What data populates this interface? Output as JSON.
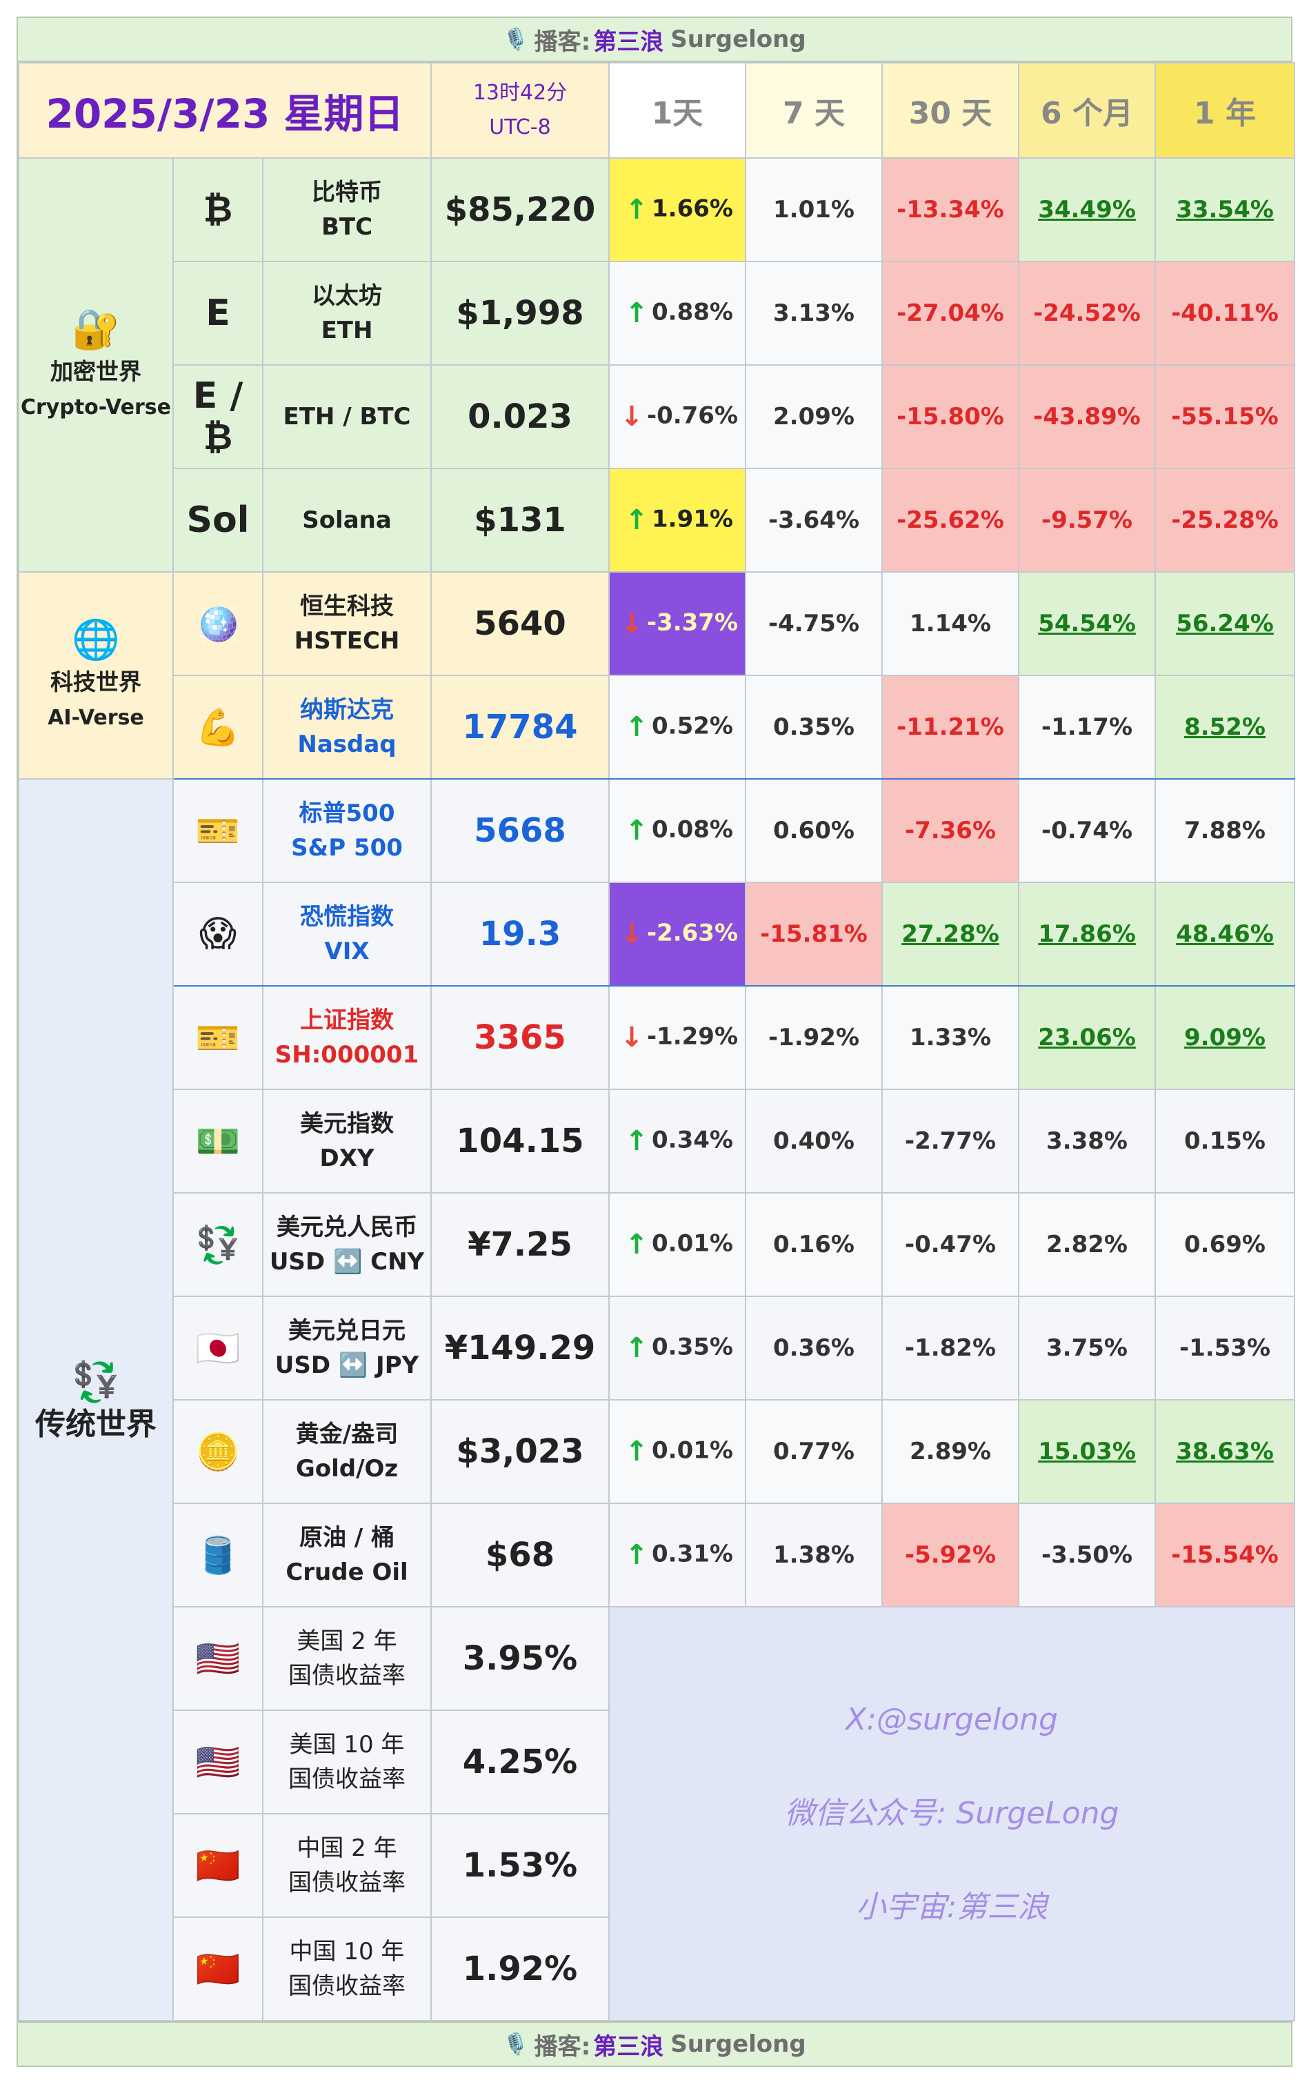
{
  "banner": {
    "mic_icon": "microphone-icon",
    "podcast_label": "播客:",
    "host_cn": "第三浪",
    "host_en": "Surgelong"
  },
  "header": {
    "date": "2025/3/23 星期日",
    "time": "13时42分",
    "timezone": "UTC-8",
    "periods": [
      "1天",
      "7 天",
      "30 天",
      "6 个月",
      "1 年"
    ]
  },
  "categories": {
    "crypto": {
      "icon": "lock-key-icon",
      "emoji": "🔐",
      "cn": "加密世界",
      "en": "Crypto-Verse"
    },
    "tech": {
      "icon": "globe-icon",
      "emoji": "🌐",
      "cn": "科技世界",
      "en": "AI-Verse"
    },
    "trad": {
      "icon": "currency-exchange-icon",
      "emoji": "💱",
      "cn": "传统世界"
    }
  },
  "rows": [
    {
      "icon": "₿",
      "cn": "比特币",
      "en": "BTC",
      "value": "$85,220",
      "arrow": "up",
      "d1": "1.66%",
      "d7": "1.01%",
      "d30": "-13.34%",
      "m6": "34.49%",
      "y1": "33.54%"
    },
    {
      "icon": "E",
      "cn": "以太坊",
      "en": "ETH",
      "value": "$1,998",
      "arrow": "up",
      "d1": "0.88%",
      "d7": "3.13%",
      "d30": "-27.04%",
      "m6": "-24.52%",
      "y1": "-40.11%"
    },
    {
      "icon": "E / ₿",
      "cn": "",
      "en": "ETH / BTC",
      "value": "0.023",
      "arrow": "down",
      "d1": "-0.76%",
      "d7": "2.09%",
      "d30": "-15.80%",
      "m6": "-43.89%",
      "y1": "-55.15%"
    },
    {
      "icon": "Sol",
      "cn": "",
      "en": "Solana",
      "value": "$131",
      "arrow": "up",
      "d1": "1.91%",
      "d7": "-3.64%",
      "d30": "-25.62%",
      "m6": "-9.57%",
      "y1": "-25.28%"
    },
    {
      "icon": "🪩",
      "cn": "恒生科技",
      "en": "HSTECH",
      "value": "5640",
      "arrow": "down",
      "d1": "-3.37%",
      "d7": "-4.75%",
      "d30": "1.14%",
      "m6": "54.54%",
      "y1": "56.24%"
    },
    {
      "icon": "💪",
      "cn": "纳斯达克",
      "en": "Nasdaq",
      "value": "17784",
      "arrow": "up",
      "d1": "0.52%",
      "d7": "0.35%",
      "d30": "-11.21%",
      "m6": "-1.17%",
      "y1": "8.52%"
    },
    {
      "icon": "🎫",
      "cn": "标普500",
      "en": "S&P 500",
      "value": "5668",
      "arrow": "up",
      "d1": "0.08%",
      "d7": "0.60%",
      "d30": "-7.36%",
      "m6": "-0.74%",
      "y1": "7.88%"
    },
    {
      "icon": "😱",
      "cn": "恐慌指数",
      "en": "VIX",
      "value": "19.3",
      "arrow": "down",
      "d1": "-2.63%",
      "d7": "-15.81%",
      "d30": "27.28%",
      "m6": "17.86%",
      "y1": "48.46%"
    },
    {
      "icon": "🎫",
      "cn": "上证指数",
      "en": "SH:000001",
      "value": "3365",
      "arrow": "down",
      "d1": "-1.29%",
      "d7": "-1.92%",
      "d30": "1.33%",
      "m6": "23.06%",
      "y1": "9.09%"
    },
    {
      "icon": "💵",
      "cn": "美元指数",
      "en": "DXY",
      "value": "104.15",
      "arrow": "up",
      "d1": "0.34%",
      "d7": "0.40%",
      "d30": "-2.77%",
      "m6": "3.38%",
      "y1": "0.15%"
    },
    {
      "icon": "💱",
      "cn": "美元兑人民币",
      "en": "USD ↔️ CNY",
      "value": "¥7.25",
      "arrow": "up",
      "d1": "0.01%",
      "d7": "0.16%",
      "d30": "-0.47%",
      "m6": "2.82%",
      "y1": "0.69%"
    },
    {
      "icon": "🇯🇵",
      "cn": "美元兑日元",
      "en": "USD ↔️ JPY",
      "value": "¥149.29",
      "arrow": "up",
      "d1": "0.35%",
      "d7": "0.36%",
      "d30": "-1.82%",
      "m6": "3.75%",
      "y1": "-1.53%"
    },
    {
      "icon": "🪙",
      "cn": "黄金/盎司",
      "en": "Gold/Oz",
      "value": "$3,023",
      "arrow": "up",
      "d1": "0.01%",
      "d7": "0.77%",
      "d30": "2.89%",
      "m6": "15.03%",
      "y1": "38.63%"
    },
    {
      "icon": "🛢️",
      "cn": "原油 / 桶",
      "en": "Crude Oil",
      "value": "$68",
      "arrow": "up",
      "d1": "0.31%",
      "d7": "1.38%",
      "d30": "-5.92%",
      "m6": "-3.50%",
      "y1": "-15.54%"
    }
  ],
  "bonds": [
    {
      "icon": "🇺🇸",
      "line1": "美国 2 年",
      "line2": "国债收益率",
      "value": "3.95%"
    },
    {
      "icon": "🇺🇸",
      "line1": "美国 10 年",
      "line2": "国债收益率",
      "value": "4.25%"
    },
    {
      "icon": "🇨🇳",
      "line1": "中国 2 年",
      "line2": "国债收益率",
      "value": "1.53%"
    },
    {
      "icon": "🇨🇳",
      "line1": "中国 10 年",
      "line2": "国债收益率",
      "value": "1.92%"
    }
  ],
  "watermark": {
    "x": "X:@surgelong",
    "wechat": "微信公众号: SurgeLong",
    "universe": "小宇宙:第三浪"
  },
  "arrows": {
    "up": "↑",
    "down": "↓"
  }
}
